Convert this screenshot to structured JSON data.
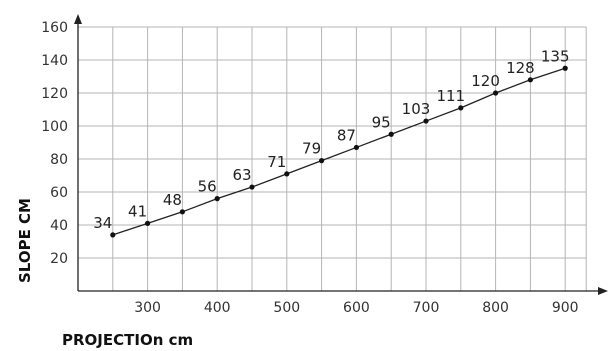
{
  "chart_data": {
    "type": "line",
    "title": "",
    "xlabel": "PROJECTIOn cm",
    "ylabel": "SLOPE CM",
    "xlim": [
      200,
      950
    ],
    "ylim": [
      0,
      160
    ],
    "x_ticks": [
      300,
      400,
      500,
      600,
      700,
      800,
      900
    ],
    "y_ticks": [
      20,
      40,
      60,
      80,
      100,
      120,
      140,
      160
    ],
    "grid": true,
    "series": [
      {
        "x": [
          250,
          300,
          350,
          400,
          450,
          500,
          550,
          600,
          650,
          700,
          750,
          800,
          850,
          900
        ],
        "values": [
          34,
          41,
          48,
          56,
          63,
          71,
          79,
          87,
          95,
          103,
          111,
          120,
          128,
          135
        ],
        "labels": [
          "34",
          "41",
          "48",
          "56",
          "63",
          "71",
          "79",
          "87",
          "95",
          "103",
          "111",
          "120",
          "128",
          "135"
        ]
      }
    ]
  }
}
